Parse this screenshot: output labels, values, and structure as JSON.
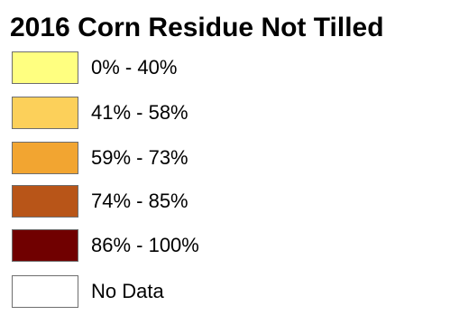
{
  "legend": {
    "title": "2016 Corn Residue Not Tilled",
    "items": [
      {
        "label": "0% - 40%",
        "color": "#ffff80"
      },
      {
        "label": "41% - 58%",
        "color": "#fcd05a"
      },
      {
        "label": "59% - 73%",
        "color": "#f2a531"
      },
      {
        "label": "74% - 85%",
        "color": "#b85518"
      },
      {
        "label": "86% - 100%",
        "color": "#700000"
      },
      {
        "label": "No Data",
        "color": "#ffffff"
      }
    ]
  }
}
